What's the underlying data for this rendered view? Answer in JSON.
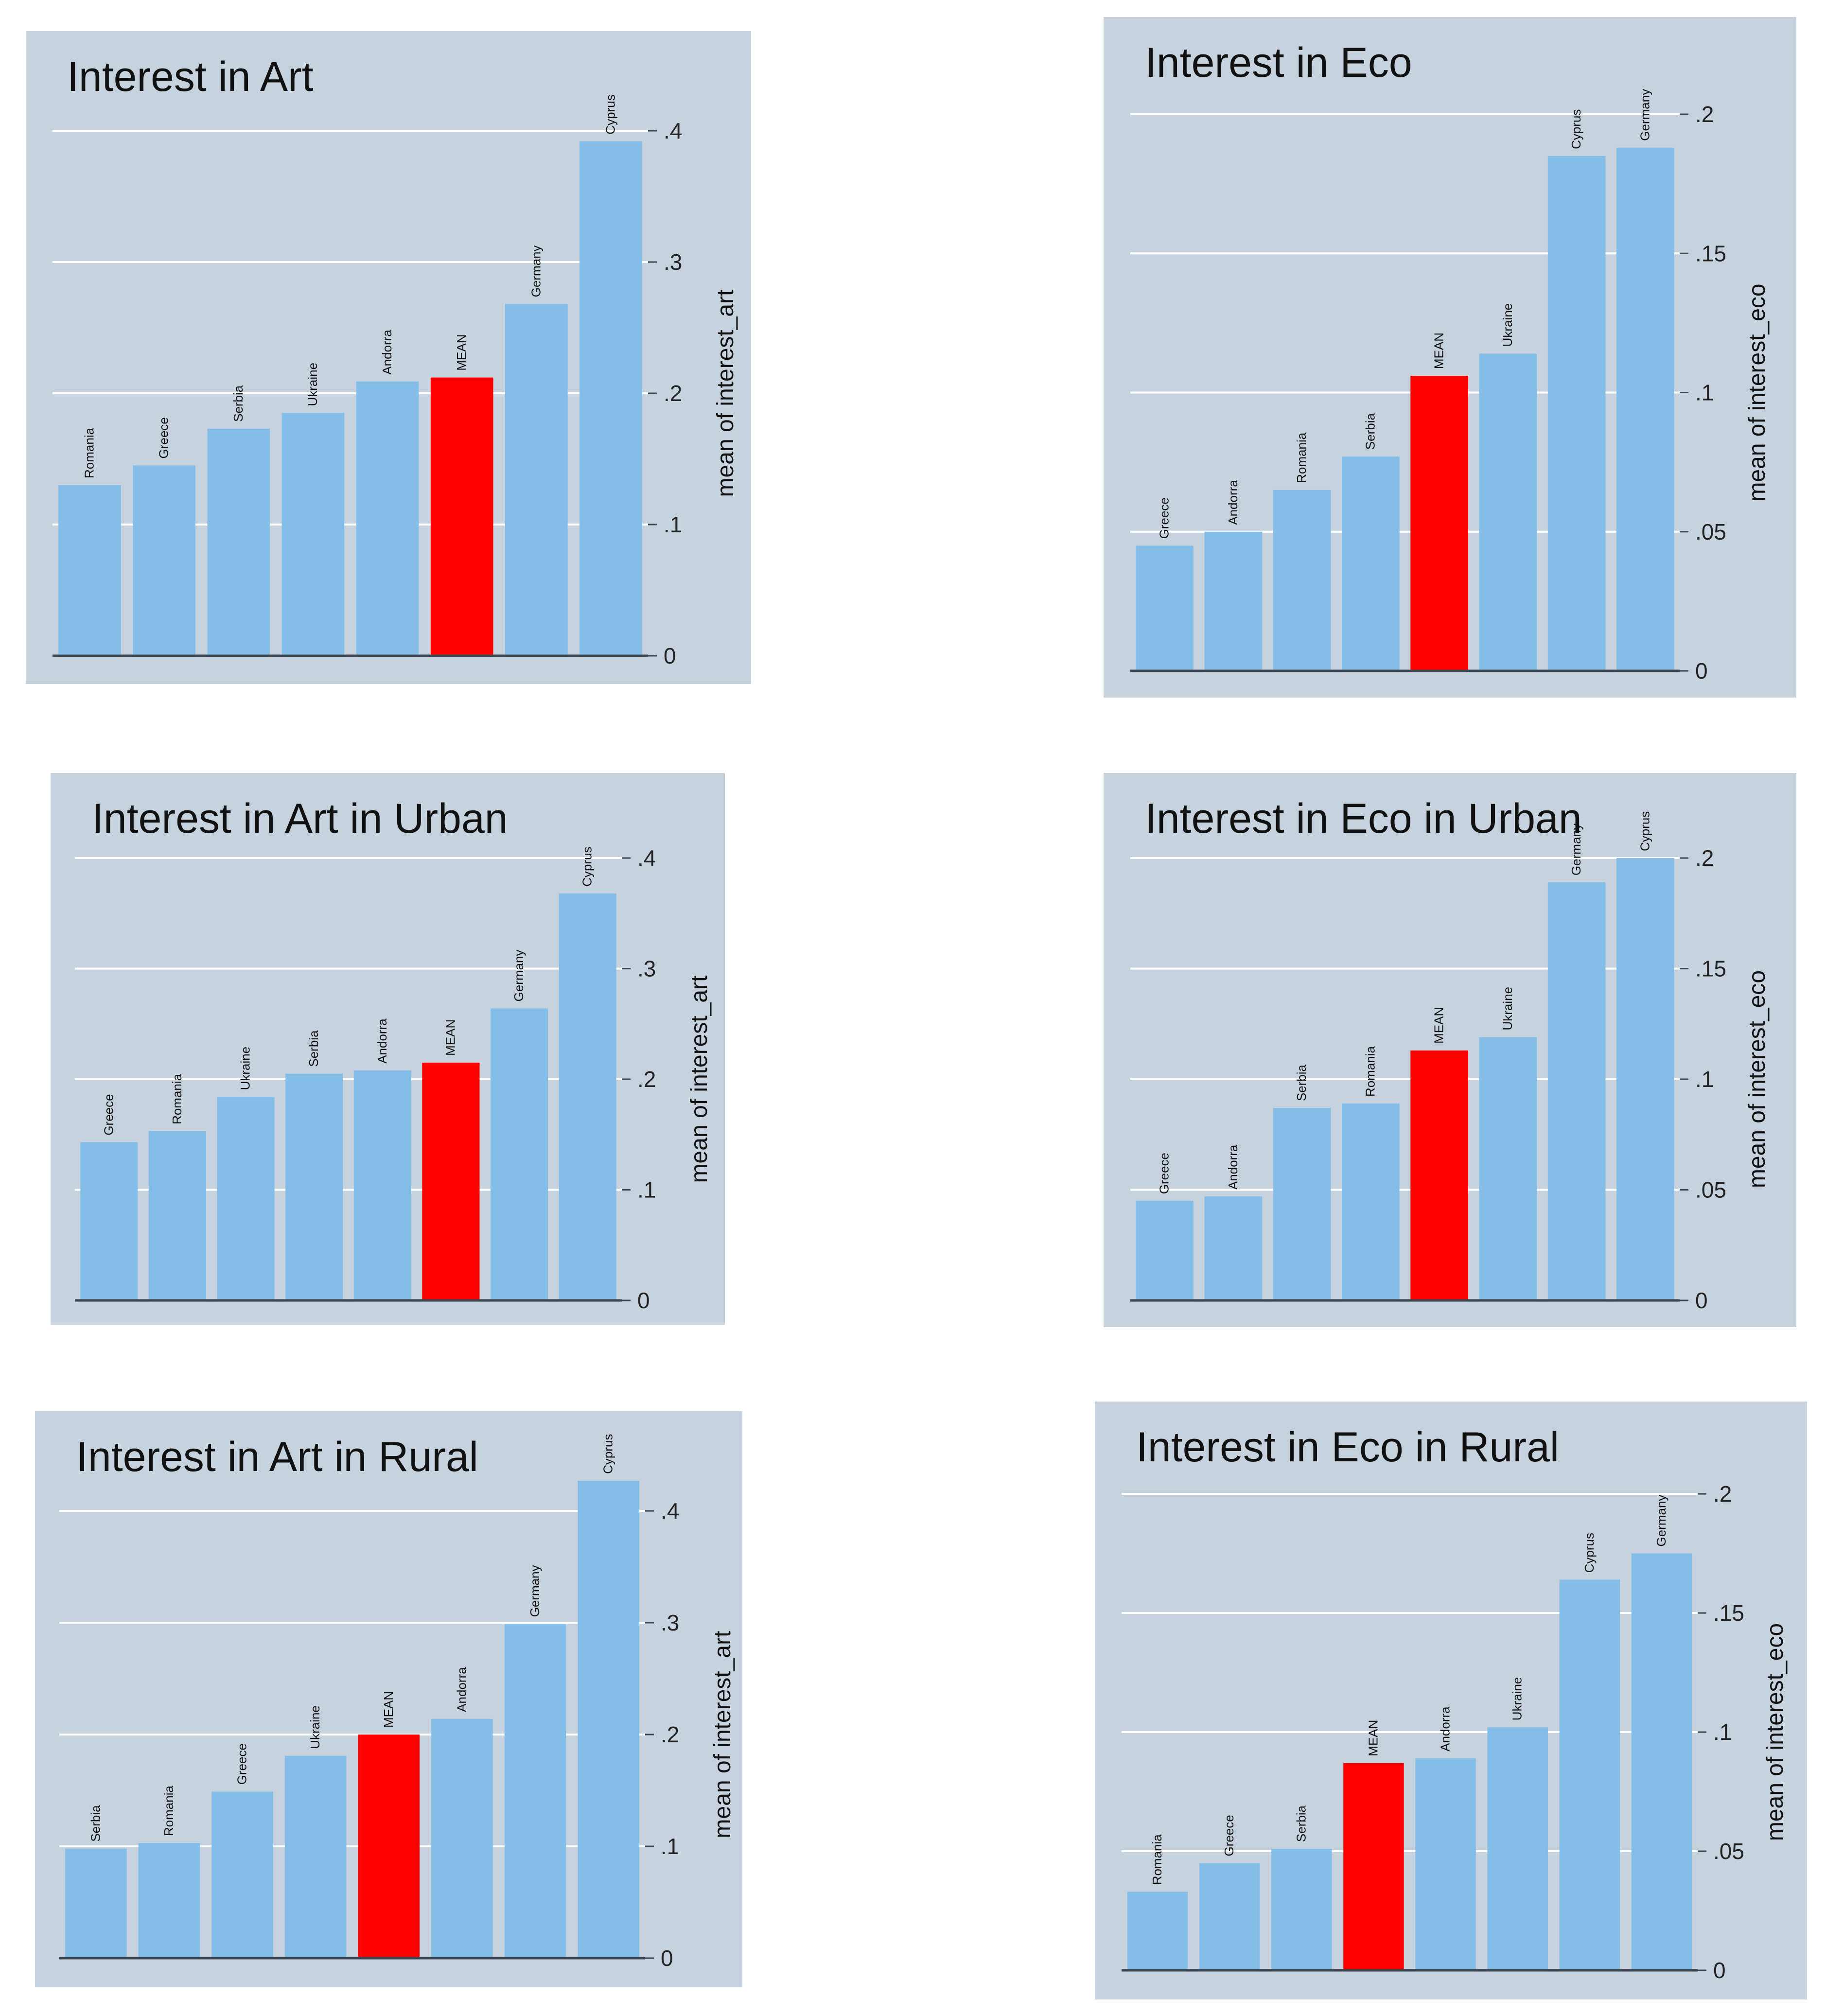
{
  "colors": {
    "panel_bg": "#c6d3df",
    "bar": "#83bde8",
    "mean_bar": "#ff0000",
    "grid": "#ffffff",
    "axis": "#3c4650"
  },
  "chart_data": [
    {
      "type": "bar",
      "title": "Interest in Art",
      "ylabel": "mean of interest_art",
      "ylim": [
        0,
        0.4
      ],
      "yticks": [
        0,
        0.1,
        0.2,
        0.3,
        0.4
      ],
      "ytick_labels": [
        "0",
        ".1",
        ".2",
        ".3",
        ".4"
      ],
      "categories": [
        "Romania",
        "Greece",
        "Serbia",
        "Ukraine",
        "Andorra",
        "MEAN",
        "Germany",
        "Cyprus"
      ],
      "values": [
        0.13,
        0.145,
        0.173,
        0.185,
        0.209,
        0.212,
        0.268,
        0.392
      ],
      "highlight": "MEAN"
    },
    {
      "type": "bar",
      "title": "Interest in Eco",
      "ylabel": "mean of interest_eco",
      "ylim": [
        0,
        0.2
      ],
      "yticks": [
        0,
        0.05,
        0.1,
        0.15,
        0.2
      ],
      "ytick_labels": [
        "0",
        ".05",
        ".1",
        ".15",
        ".2"
      ],
      "categories": [
        "Greece",
        "Andorra",
        "Romania",
        "Serbia",
        "MEAN",
        "Ukraine",
        "Cyprus",
        "Germany"
      ],
      "values": [
        0.045,
        0.05,
        0.065,
        0.077,
        0.106,
        0.114,
        0.185,
        0.188
      ],
      "highlight": "MEAN"
    },
    {
      "type": "bar",
      "title": "Interest in Art in Urban",
      "ylabel": "mean of interest_art",
      "ylim": [
        0,
        0.4
      ],
      "yticks": [
        0,
        0.1,
        0.2,
        0.3,
        0.4
      ],
      "ytick_labels": [
        "0",
        ".1",
        ".2",
        ".3",
        ".4"
      ],
      "categories": [
        "Greece",
        "Romania",
        "Ukraine",
        "Serbia",
        "Andorra",
        "MEAN",
        "Germany",
        "Cyprus"
      ],
      "values": [
        0.143,
        0.153,
        0.184,
        0.205,
        0.208,
        0.215,
        0.264,
        0.368
      ],
      "highlight": "MEAN"
    },
    {
      "type": "bar",
      "title": "Interest in Eco in Urban",
      "ylabel": "mean of interest_eco",
      "ylim": [
        0,
        0.2
      ],
      "yticks": [
        0,
        0.05,
        0.1,
        0.15,
        0.2
      ],
      "ytick_labels": [
        "0",
        ".05",
        ".1",
        ".15",
        ".2"
      ],
      "categories": [
        "Greece",
        "Andorra",
        "Serbia",
        "Romania",
        "MEAN",
        "Ukraine",
        "Germany",
        "Cyprus"
      ],
      "values": [
        0.045,
        0.047,
        0.087,
        0.089,
        0.113,
        0.119,
        0.189,
        0.2
      ],
      "highlight": "MEAN"
    },
    {
      "type": "bar",
      "title": "Interest in Art in Rural",
      "ylabel": "mean of interest_art",
      "ylim": [
        0,
        0.4
      ],
      "yticks": [
        0,
        0.1,
        0.2,
        0.3,
        0.4
      ],
      "ytick_labels": [
        "0",
        ".1",
        ".2",
        ".3",
        ".4"
      ],
      "categories": [
        "Serbia",
        "Romania",
        "Greece",
        "Ukraine",
        "MEAN",
        "Andorra",
        "Germany",
        "Cyprus"
      ],
      "values": [
        0.098,
        0.103,
        0.149,
        0.181,
        0.2,
        0.214,
        0.299,
        0.427
      ],
      "highlight": "MEAN"
    },
    {
      "type": "bar",
      "title": "Interest in Eco in Rural",
      "ylabel": "mean of interest_eco",
      "ylim": [
        0,
        0.2
      ],
      "yticks": [
        0,
        0.05,
        0.1,
        0.15,
        0.2
      ],
      "ytick_labels": [
        "0",
        ".05",
        ".1",
        ".15",
        ".2"
      ],
      "categories": [
        "Romania",
        "Greece",
        "Serbia",
        "MEAN",
        "Andorra",
        "Ukraine",
        "Cyprus",
        "Germany"
      ],
      "values": [
        0.033,
        0.045,
        0.051,
        0.087,
        0.089,
        0.102,
        0.164,
        0.175
      ],
      "highlight": "MEAN"
    }
  ]
}
